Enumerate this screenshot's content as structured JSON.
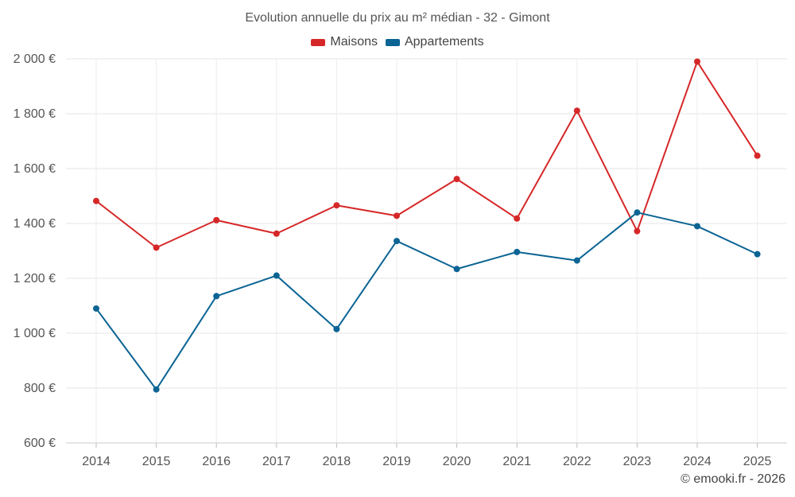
{
  "chart_data": {
    "type": "line",
    "title": "Evolution annuelle du prix au m² médian - 32 - Gimont",
    "categories": [
      "2014",
      "2015",
      "2016",
      "2017",
      "2018",
      "2019",
      "2020",
      "2021",
      "2022",
      "2023",
      "2024",
      "2025"
    ],
    "series": [
      {
        "name": "Maisons",
        "color": "#d62728",
        "values": [
          1482,
          1312,
          1412,
          1363,
          1466,
          1428,
          1562,
          1418,
          1811,
          1372,
          1990,
          1647
        ]
      },
      {
        "name": "Appartements",
        "color": "#0b6494",
        "values": [
          1090,
          795,
          1135,
          1210,
          1015,
          1336,
          1234,
          1296,
          1265,
          1440,
          1390,
          1288
        ]
      }
    ],
    "ylim": [
      600,
      2000
    ],
    "yticks": [
      600,
      800,
      1000,
      1200,
      1400,
      1600,
      1800,
      2000
    ],
    "ytick_labels": [
      "600 €",
      "800 €",
      "1 000 €",
      "1 200 €",
      "1 400 €",
      "1 600 €",
      "1 800 €",
      "2 000 €"
    ],
    "xlabel": "",
    "ylabel": "",
    "grid": true,
    "legend_position": "top-center"
  },
  "credit": "© emooki.fr - 2026"
}
